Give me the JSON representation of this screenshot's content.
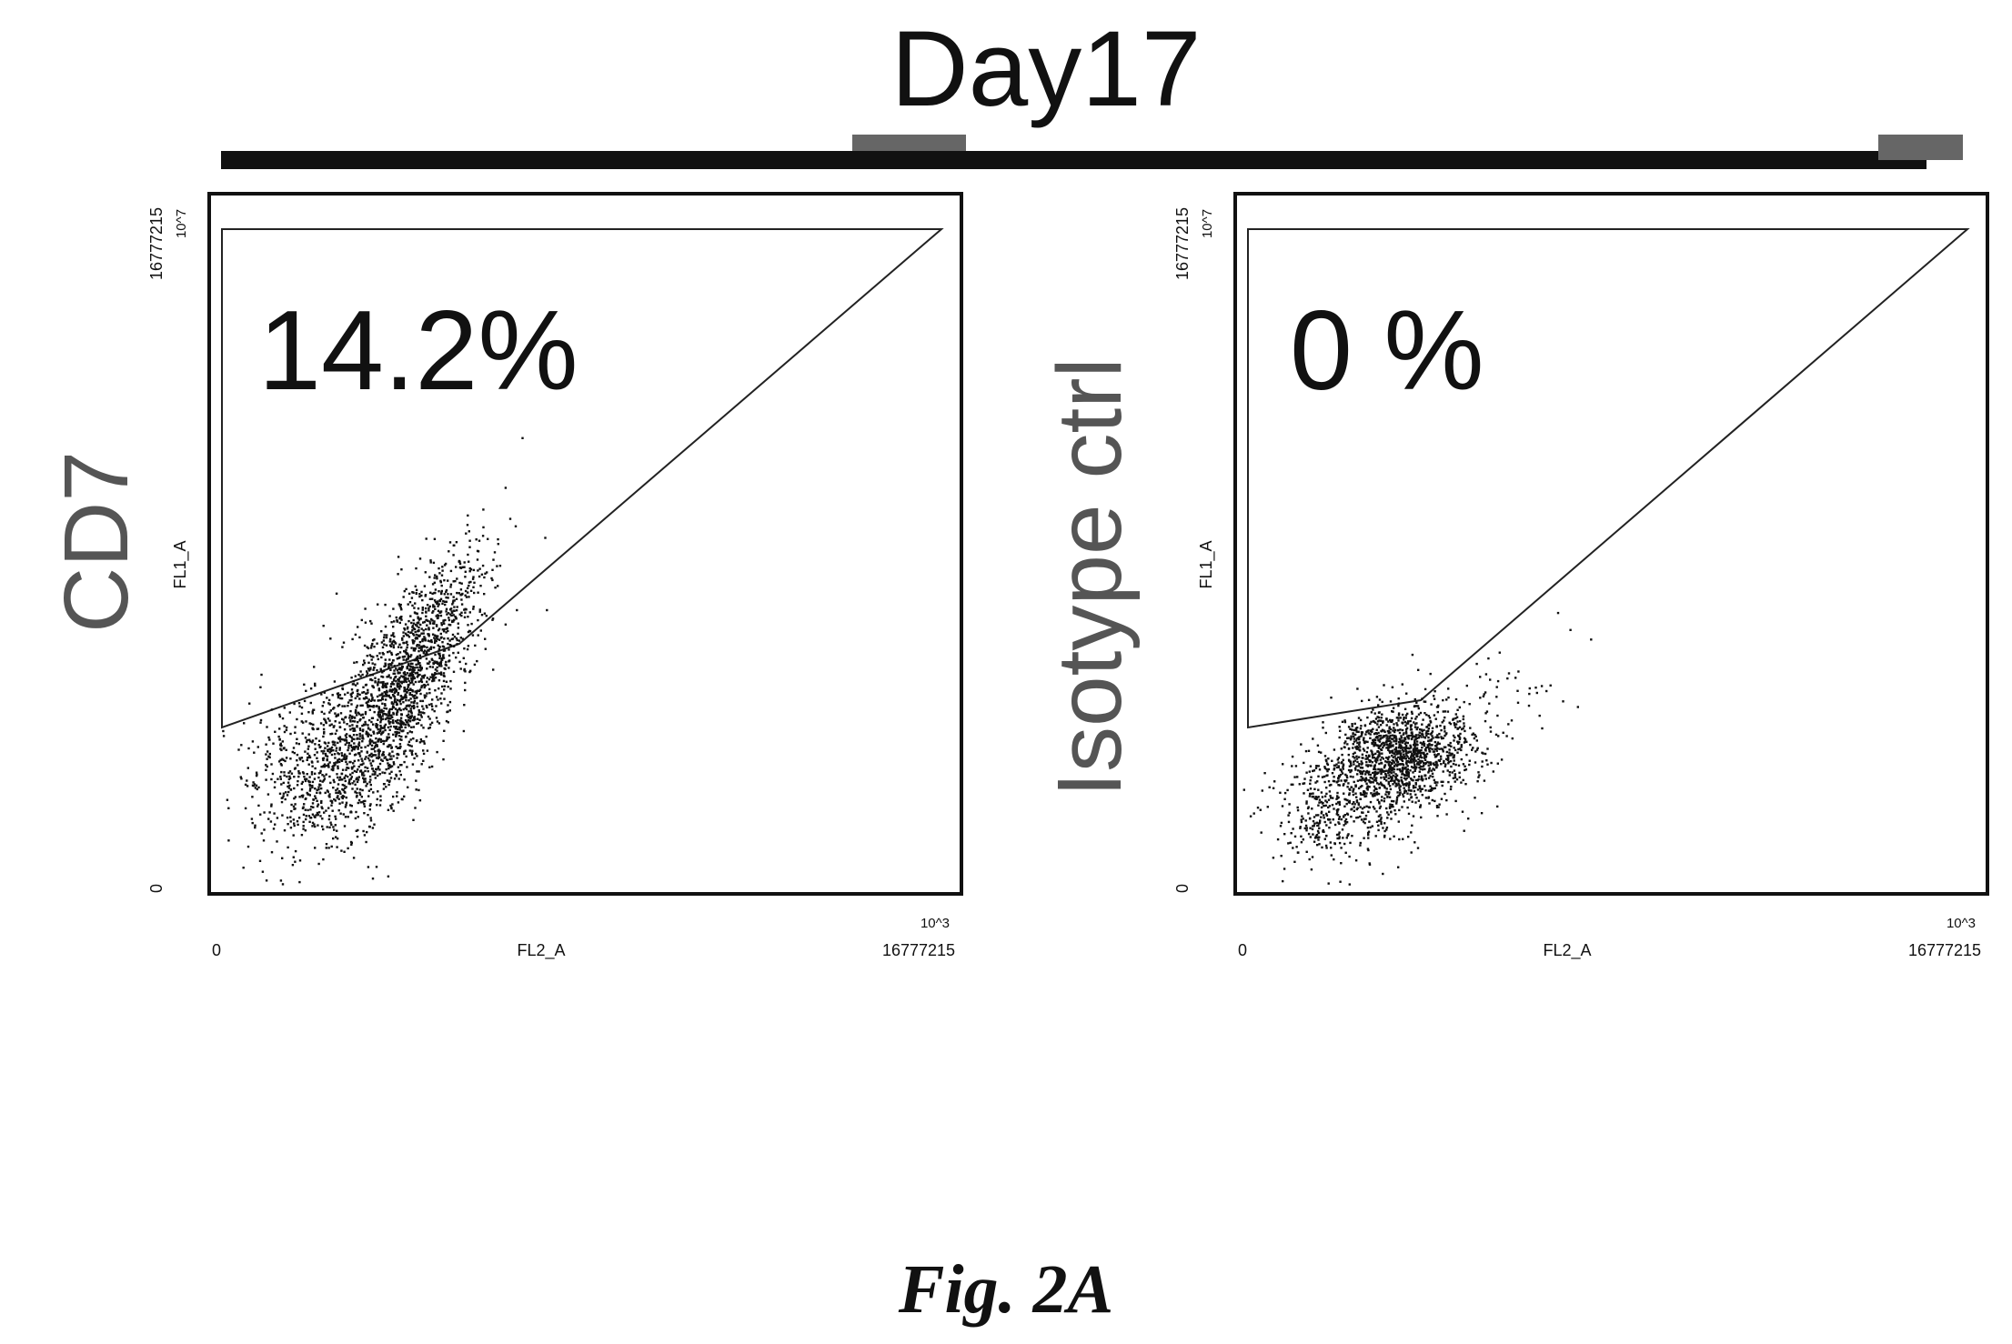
{
  "figure": {
    "header": "Day17",
    "caption": "Fig. 2A"
  },
  "chart_data": [
    {
      "type": "scatter",
      "side_label": "CD7",
      "gate_percent": "14.2%",
      "x_channel": "FL2_A",
      "y_channel": "FL1_A",
      "x_ticks": [
        "0",
        "10^3",
        "16777215"
      ],
      "y_ticks": [
        "0",
        "10^7",
        "16777215"
      ],
      "gate": "upper-left polygon above diagonal",
      "grid": false,
      "point_color": "#111111",
      "seed": 11,
      "clusters": [
        {
          "cx": 0.24,
          "cy": 0.27,
          "sx": 0.045,
          "sy": 0.065,
          "n": 1400,
          "tilt": 0.8
        },
        {
          "cx": 0.14,
          "cy": 0.18,
          "sx": 0.05,
          "sy": 0.06,
          "n": 600,
          "tilt": 0.2
        },
        {
          "cx": 0.3,
          "cy": 0.38,
          "sx": 0.04,
          "sy": 0.05,
          "n": 450,
          "tilt": 0.9
        }
      ]
    },
    {
      "type": "scatter",
      "side_label": "Isotype ctrl",
      "gate_percent": "0 %",
      "x_channel": "FL2_A",
      "y_channel": "FL1_A",
      "x_ticks": [
        "0",
        "10^3",
        "16777215"
      ],
      "y_ticks": [
        "0",
        "10^7",
        "16777215"
      ],
      "gate": "upper-left polygon above diagonal",
      "grid": false,
      "point_color": "#111111",
      "seed": 29,
      "clusters": [
        {
          "cx": 0.22,
          "cy": 0.2,
          "sx": 0.045,
          "sy": 0.035,
          "n": 1300,
          "tilt": 0.1
        },
        {
          "cx": 0.14,
          "cy": 0.13,
          "sx": 0.05,
          "sy": 0.045,
          "n": 500,
          "tilt": 0.1
        },
        {
          "cx": 0.34,
          "cy": 0.27,
          "sx": 0.05,
          "sy": 0.04,
          "n": 60,
          "tilt": 0.3
        }
      ]
    }
  ]
}
